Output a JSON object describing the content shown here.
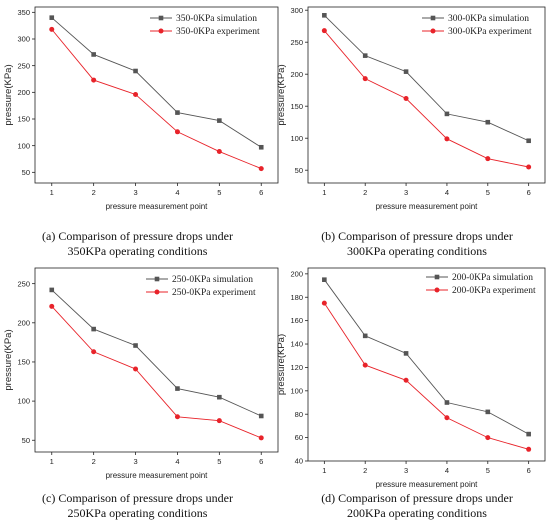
{
  "chart_data": [
    {
      "type": "line",
      "x": [
        1,
        2,
        3,
        4,
        5,
        6
      ],
      "xlabel": "pressure measurement point",
      "ylabel": "pressure(KPa)",
      "ylim": [
        30,
        360
      ],
      "yticks": [
        50,
        100,
        150,
        200,
        250,
        300,
        350
      ],
      "legend_position": "top-right",
      "series": [
        {
          "name": "350-0KPa simulation",
          "color": "#555555",
          "marker": "square",
          "values": [
            340,
            271,
            240,
            162,
            147,
            97
          ]
        },
        {
          "name": "350-0KPa experiment",
          "color": "#e8232a",
          "marker": "circle",
          "values": [
            318,
            223,
            196,
            126,
            89,
            57
          ]
        }
      ],
      "caption": [
        "(a) Comparison of pressure drops under",
        "350KPa operating conditions"
      ]
    },
    {
      "type": "line",
      "x": [
        1,
        2,
        3,
        4,
        5,
        6
      ],
      "xlabel": "pressure measurement point",
      "ylabel": "pressure(KPa)",
      "ylim": [
        30,
        305
      ],
      "yticks": [
        50,
        100,
        150,
        200,
        250,
        300
      ],
      "legend_position": "top-right",
      "series": [
        {
          "name": "300-0KPa  simulation",
          "color": "#555555",
          "marker": "square",
          "values": [
            292,
            229,
            204,
            138,
            125,
            96
          ]
        },
        {
          "name": "300-0KPa  experiment",
          "color": "#e8232a",
          "marker": "circle",
          "values": [
            268,
            193,
            162,
            99,
            68,
            55
          ]
        }
      ],
      "caption": [
        "(b) Comparison of pressure drops under",
        "300KPa operating conditions"
      ]
    },
    {
      "type": "line",
      "x": [
        1,
        2,
        3,
        4,
        5,
        6
      ],
      "xlabel": "pressure measurement point",
      "ylabel": "pressure(KPa)",
      "ylim": [
        35,
        270
      ],
      "yticks": [
        50,
        100,
        150,
        200,
        250
      ],
      "legend_position": "top-right",
      "series": [
        {
          "name": "250-0KPa  simulation",
          "color": "#555555",
          "marker": "square",
          "values": [
            242,
            192,
            171,
            116,
            105,
            81
          ]
        },
        {
          "name": "250-0KPa  experiment",
          "color": "#e8232a",
          "marker": "circle",
          "values": [
            221,
            163,
            141,
            80,
            75,
            53
          ]
        }
      ],
      "caption": [
        "(c) Comparison of pressure drops under",
        "250KPa operating conditions"
      ]
    },
    {
      "type": "line",
      "x": [
        1,
        2,
        3,
        4,
        5,
        6
      ],
      "xlabel": "pressure measurement point",
      "ylabel": "pressure(KPa)",
      "ylim": [
        40,
        205
      ],
      "yticks": [
        40,
        60,
        80,
        100,
        120,
        140,
        160,
        180,
        200
      ],
      "legend_position": "top-right",
      "series": [
        {
          "name": "200-0KPa simulation",
          "color": "#555555",
          "marker": "square",
          "values": [
            195,
            147,
            132,
            90,
            82,
            63
          ]
        },
        {
          "name": "200-0KPa experiment",
          "color": "#e8232a",
          "marker": "circle",
          "values": [
            175,
            122,
            109,
            77,
            60,
            50
          ]
        }
      ],
      "caption": [
        "(d) Comparison of pressure drops under",
        "200KPa operating conditions"
      ]
    }
  ]
}
